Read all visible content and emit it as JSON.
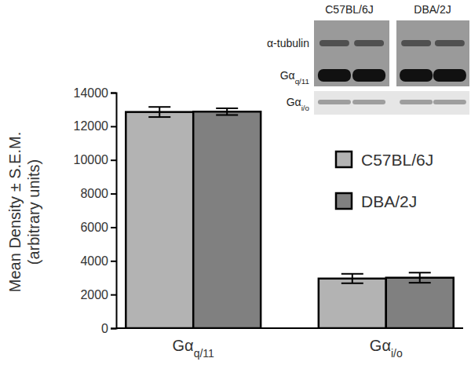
{
  "chart_data": {
    "type": "bar",
    "ylabel": [
      "Mean Density ± S.E.M.",
      "(arbitrary units)"
    ],
    "categories": [
      "Gαq/11",
      "Gαi/o"
    ],
    "series": [
      {
        "name": "C57BL/6J",
        "color": "#b3b3b3",
        "values": [
          12850,
          2950
        ],
        "errors": [
          300,
          280
        ]
      },
      {
        "name": "DBA/2J",
        "color": "#808080",
        "values": [
          12870,
          3000
        ],
        "errors": [
          200,
          300
        ]
      }
    ],
    "ylim": [
      0,
      14000
    ],
    "yticks": [
      0,
      2000,
      4000,
      6000,
      8000,
      10000,
      12000,
      14000
    ],
    "grid": false,
    "legend": "right",
    "annotations": [
      "C57BL/6J",
      "DBA/2J",
      "α-tubulin",
      "Gαq/11",
      "Gαi/o"
    ]
  }
}
